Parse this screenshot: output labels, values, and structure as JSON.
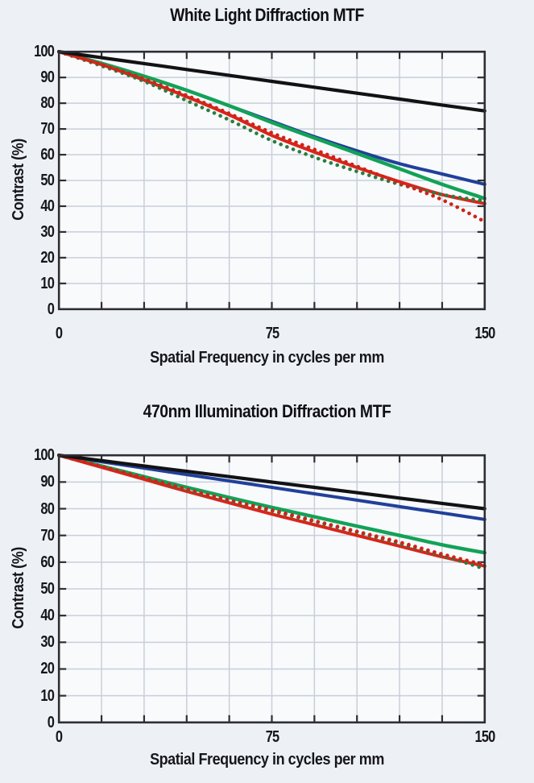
{
  "page": {
    "background_color": "#edf1f5",
    "plot_background_color": "#f8fafc",
    "gridline_color": "#c9cfd9",
    "frame_color": "#2e2e35"
  },
  "chart_data": [
    {
      "type": "line",
      "title": "White Light Diffraction MTF",
      "xlabel": "Spatial Frequency in cycles per mm",
      "ylabel": "Contrast (%)",
      "xlim": [
        0,
        150
      ],
      "ylim": [
        0,
        100
      ],
      "grid": true,
      "x_tick_step": 15,
      "y_tick_step": 10,
      "x_labeled_ticks": [
        0,
        75,
        150
      ],
      "y_labeled_ticks": [
        0,
        10,
        20,
        30,
        40,
        50,
        60,
        70,
        80,
        90,
        100
      ],
      "legend": "none",
      "x": [
        0,
        15,
        30,
        45,
        60,
        75,
        90,
        105,
        120,
        135,
        150
      ],
      "series": [
        {
          "name": "blue-solid",
          "color": "#21409a",
          "style": "solid",
          "width": 4,
          "values": [
            100,
            95.5,
            90.5,
            85,
            79,
            73,
            67,
            61.5,
            56.5,
            52.5,
            48.5
          ]
        },
        {
          "name": "green-solid",
          "color": "#12a257",
          "style": "solid",
          "width": 4.4,
          "values": [
            100,
            95.5,
            90.5,
            85,
            79,
            72.5,
            66.5,
            60.5,
            54.5,
            48.5,
            43
          ]
        },
        {
          "name": "red-solid",
          "color": "#da251a",
          "style": "solid",
          "width": 4,
          "values": [
            100,
            95,
            89,
            82.5,
            75.5,
            67.5,
            61,
            55,
            49.5,
            44.5,
            41
          ]
        },
        {
          "name": "green-dotted",
          "color": "#2a7d3f",
          "style": "dotted",
          "width": 4.6,
          "values": [
            100,
            94.5,
            88.5,
            81,
            73.5,
            65.5,
            59,
            53.5,
            48.5,
            44.5,
            42
          ]
        },
        {
          "name": "red-dotted",
          "color": "#cf2318",
          "style": "dotted",
          "width": 4.6,
          "values": [
            100,
            95,
            89.5,
            83,
            76,
            68.5,
            62,
            55.5,
            49,
            42.5,
            34
          ]
        },
        {
          "name": "black-diffraction-limit",
          "color": "#121215",
          "style": "solid",
          "width": 4.2,
          "values": [
            100,
            97.7,
            95.4,
            93.1,
            90.8,
            88.5,
            86.2,
            83.9,
            81.6,
            79.3,
            77
          ]
        }
      ]
    },
    {
      "type": "line",
      "title": "470nm Illumination Diffraction MTF",
      "xlabel": "Spatial Frequency in cycles per mm",
      "ylabel": "Contrast (%)",
      "xlim": [
        0,
        150
      ],
      "ylim": [
        0,
        100
      ],
      "grid": true,
      "x_tick_step": 15,
      "y_tick_step": 10,
      "x_labeled_ticks": [
        0,
        75,
        150
      ],
      "y_labeled_ticks": [
        0,
        10,
        20,
        30,
        40,
        50,
        60,
        70,
        80,
        90,
        100
      ],
      "legend": "none",
      "x": [
        0,
        15,
        30,
        45,
        60,
        75,
        90,
        105,
        120,
        135,
        150
      ],
      "series": [
        {
          "name": "blue-solid",
          "color": "#21409a",
          "style": "solid",
          "width": 4,
          "values": [
            100,
            97.6,
            95.2,
            92.8,
            90.4,
            88,
            85.6,
            83.2,
            80.8,
            78.4,
            76
          ]
        },
        {
          "name": "green-solid",
          "color": "#12a257",
          "style": "solid",
          "width": 4.4,
          "values": [
            100,
            96,
            92,
            88,
            84.2,
            80.5,
            77,
            73.5,
            70,
            66.5,
            63.5
          ]
        },
        {
          "name": "red-solid",
          "color": "#da251a",
          "style": "solid",
          "width": 4,
          "values": [
            100,
            95.5,
            91,
            86.5,
            82.2,
            78,
            74,
            70,
            66,
            62,
            58.5
          ]
        },
        {
          "name": "green-dotted",
          "color": "#2a7d3f",
          "style": "dotted",
          "width": 4.6,
          "values": [
            100,
            95.8,
            91.5,
            87,
            83,
            79.2,
            75.2,
            71.2,
            67,
            62.5,
            57.5
          ]
        },
        {
          "name": "red-dotted",
          "color": "#cf2318",
          "style": "dotted",
          "width": 4.6,
          "values": [
            100,
            95.8,
            91.6,
            87.3,
            83.2,
            79.5,
            75.5,
            71.5,
            67.5,
            63,
            59
          ]
        },
        {
          "name": "black-diffraction-limit",
          "color": "#121215",
          "style": "solid",
          "width": 4.2,
          "values": [
            100,
            98,
            96,
            94,
            92,
            90,
            88,
            86,
            84,
            82,
            80
          ]
        }
      ]
    }
  ]
}
